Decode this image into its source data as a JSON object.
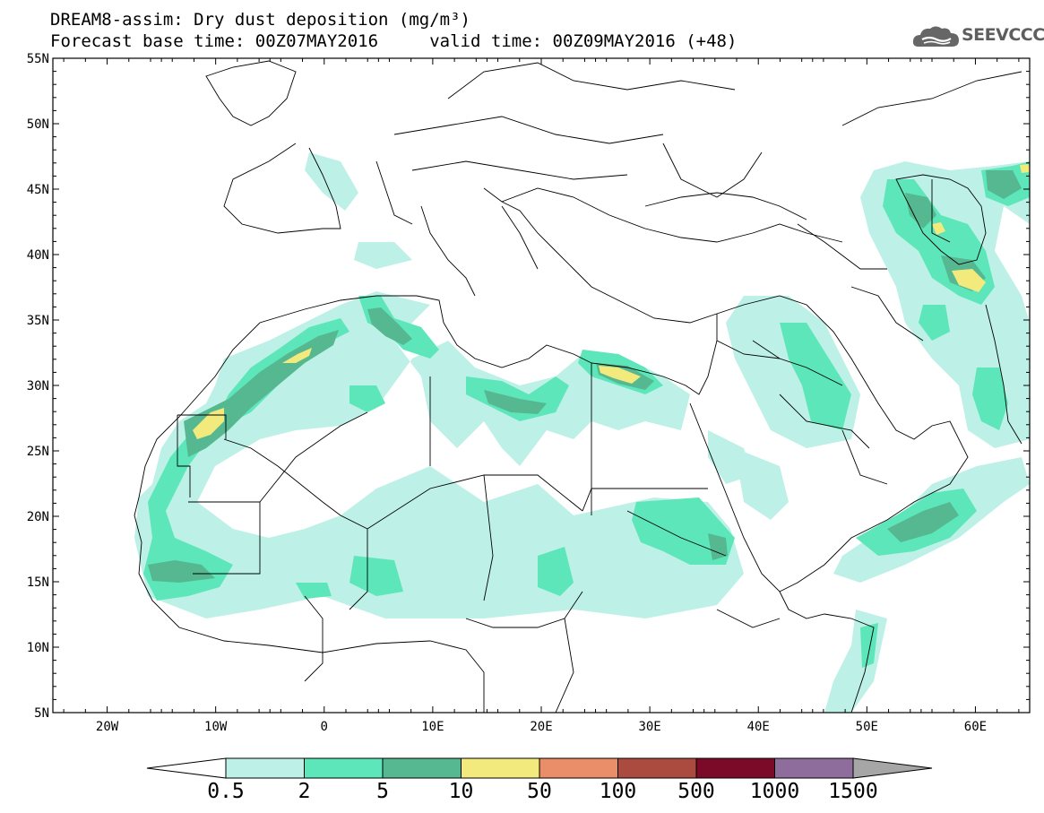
{
  "header": {
    "title_line1": "DREAM8-assim: Dry dust deposition (mg/m³)",
    "title_line2": "Forecast base time: 00Z07MAY2016     valid time: 00Z09MAY2016 (+48)"
  },
  "logo": {
    "text": "SEEVCCC",
    "icon": "cloud-icon"
  },
  "map": {
    "lon_range": [
      -25,
      65
    ],
    "lat_range": [
      5,
      55
    ],
    "lat_ticks": [
      "55N",
      "50N",
      "45N",
      "40N",
      "35N",
      "30N",
      "25N",
      "20N",
      "15N",
      "10N",
      "5N"
    ],
    "lon_ticks": [
      "20W",
      "10W",
      "0",
      "10E",
      "20E",
      "30E",
      "40E",
      "50E",
      "60E"
    ]
  },
  "legend": {
    "labels": [
      "0.5",
      "2",
      "5",
      "10",
      "50",
      "100",
      "500",
      "1000",
      "1500"
    ],
    "colors": [
      "#bdf0e6",
      "#5de6b9",
      "#55b891",
      "#f2ea7c",
      "#ea8d69",
      "#ab4b3f",
      "#7a0a27",
      "#8e6c9c"
    ],
    "left_arrow_color": "#ffffff",
    "right_arrow_color": "#a6a6a6"
  }
}
